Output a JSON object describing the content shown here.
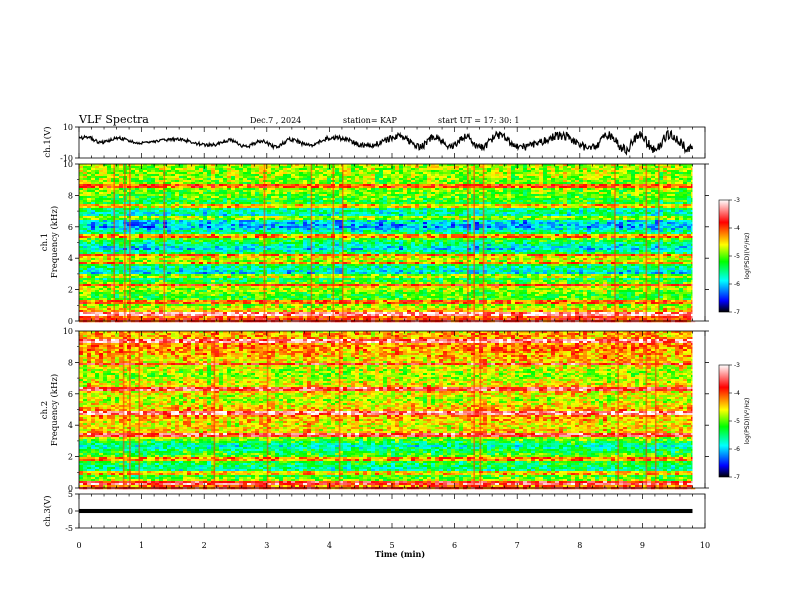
{
  "header": {
    "title": "VLF Spectra",
    "date": "Dec.7 , 2024",
    "station": "station= KAP",
    "start": "start UT =   17: 30: 1"
  },
  "chart_data": [
    {
      "type": "line",
      "panel": "ch1-waveform",
      "ylabel": "ch.1(V)",
      "ylim": [
        -10,
        10
      ],
      "yticks": [
        "10",
        "-10"
      ],
      "xlim": [
        0,
        10
      ],
      "xrange_data": [
        0,
        9.8
      ],
      "amplitude_trend": [
        {
          "t": 0.0,
          "mean": 2,
          "swing": 3
        },
        {
          "t": 1.0,
          "mean": 1,
          "swing": 2
        },
        {
          "t": 2.0,
          "mean": 0,
          "swing": 3
        },
        {
          "t": 3.0,
          "mean": -1,
          "swing": 3
        },
        {
          "t": 4.0,
          "mean": 1,
          "swing": 4
        },
        {
          "t": 5.0,
          "mean": 1,
          "swing": 5
        },
        {
          "t": 6.0,
          "mean": 0,
          "swing": 6
        },
        {
          "t": 7.0,
          "mean": 1,
          "swing": 7
        },
        {
          "t": 8.0,
          "mean": 0,
          "swing": 7
        },
        {
          "t": 9.0,
          "mean": 0,
          "swing": 8
        },
        {
          "t": 9.8,
          "mean": 1,
          "swing": 8
        }
      ]
    },
    {
      "type": "heatmap",
      "panel": "ch1-spectrogram",
      "ylabel_1": "ch.1",
      "ylabel_2": "Frequency (kHz)",
      "ylim": [
        0,
        10
      ],
      "yticks": [
        "0",
        "2",
        "4",
        "6",
        "8",
        "10"
      ],
      "colorbar": {
        "label": "log(PSD)(V²/Hz)",
        "range": [
          -7,
          -3
        ],
        "ticks": [
          "-3",
          "-4",
          "-5",
          "-6",
          "-7"
        ]
      },
      "intensity_profile_khz": [
        {
          "f": 0.0,
          "level": -3.8
        },
        {
          "f": 0.5,
          "level": -4.2
        },
        {
          "f": 1.0,
          "level": -4.9
        },
        {
          "f": 1.6,
          "level": -5.2
        },
        {
          "f": 2.2,
          "level": -4.7
        },
        {
          "f": 3.0,
          "level": -5.9
        },
        {
          "f": 3.5,
          "level": -5.5
        },
        {
          "f": 4.0,
          "level": -4.5
        },
        {
          "f": 4.6,
          "level": -6.0
        },
        {
          "f": 5.3,
          "level": -5.0
        },
        {
          "f": 6.0,
          "level": -6.1
        },
        {
          "f": 7.0,
          "level": -5.6
        },
        {
          "f": 8.0,
          "level": -5.0
        },
        {
          "f": 9.0,
          "level": -4.9
        },
        {
          "f": 10.0,
          "level": -4.8
        }
      ],
      "bands_khz": [
        0.4,
        1.2,
        2.3,
        2.9,
        3.7,
        4.2,
        5.4,
        6.6,
        7.3,
        8.6
      ],
      "event_times_min": [
        0.55,
        0.72,
        0.8,
        1.35,
        2.95,
        3.7,
        4.05,
        4.2,
        6.2,
        6.3,
        6.45,
        8.55,
        9.05,
        9.25
      ]
    },
    {
      "type": "heatmap",
      "panel": "ch2-spectrogram",
      "ylabel_1": "ch.2",
      "ylabel_2": "Frequency (kHz)",
      "ylim": [
        0,
        10
      ],
      "yticks": [
        "0",
        "2",
        "4",
        "6",
        "8",
        "10"
      ],
      "colorbar": {
        "label": "log(PSD)(V²/Hz)",
        "range": [
          -7,
          -3
        ],
        "ticks": [
          "-3",
          "-4",
          "-5",
          "-6",
          "-7"
        ]
      },
      "intensity_profile_khz": [
        {
          "f": 0.0,
          "level": -3.9
        },
        {
          "f": 0.6,
          "level": -5.0
        },
        {
          "f": 1.2,
          "level": -5.6
        },
        {
          "f": 2.0,
          "level": -5.0
        },
        {
          "f": 2.7,
          "level": -5.7
        },
        {
          "f": 3.4,
          "level": -4.4
        },
        {
          "f": 4.0,
          "level": -4.6
        },
        {
          "f": 4.8,
          "level": -4.2
        },
        {
          "f": 5.6,
          "level": -4.8
        },
        {
          "f": 6.3,
          "level": -4.4
        },
        {
          "f": 7.2,
          "level": -4.9
        },
        {
          "f": 8.0,
          "level": -4.5
        },
        {
          "f": 9.0,
          "level": -4.2
        },
        {
          "f": 10.0,
          "level": -4.4
        }
      ],
      "bands_khz": [
        0.3,
        0.9,
        1.9,
        3.4,
        4.8,
        6.3,
        7.9,
        9.4
      ],
      "event_times_min": [
        0.7,
        0.8,
        0.95,
        2.15,
        3.0,
        4.15,
        6.3,
        6.4,
        8.6,
        9.05,
        9.2
      ]
    },
    {
      "type": "line",
      "panel": "ch3-waveform",
      "ylabel": "ch.3(V)",
      "ylim": [
        -5,
        5
      ],
      "yticks": [
        "5",
        "0",
        "-5"
      ],
      "xlim": [
        0,
        10
      ],
      "xticks": [
        "0",
        "1",
        "2",
        "3",
        "4",
        "5",
        "6",
        "7",
        "8",
        "9",
        "10"
      ],
      "xlabel": "Time (min)",
      "constant_level": 0,
      "band_halfwidth": 0.6
    }
  ],
  "colors": {
    "axis": "#000000",
    "colormap": [
      "#ffffff",
      "#ff0000",
      "#ffff00",
      "#00ff00",
      "#00ffff",
      "#0000ff",
      "#000000"
    ]
  }
}
